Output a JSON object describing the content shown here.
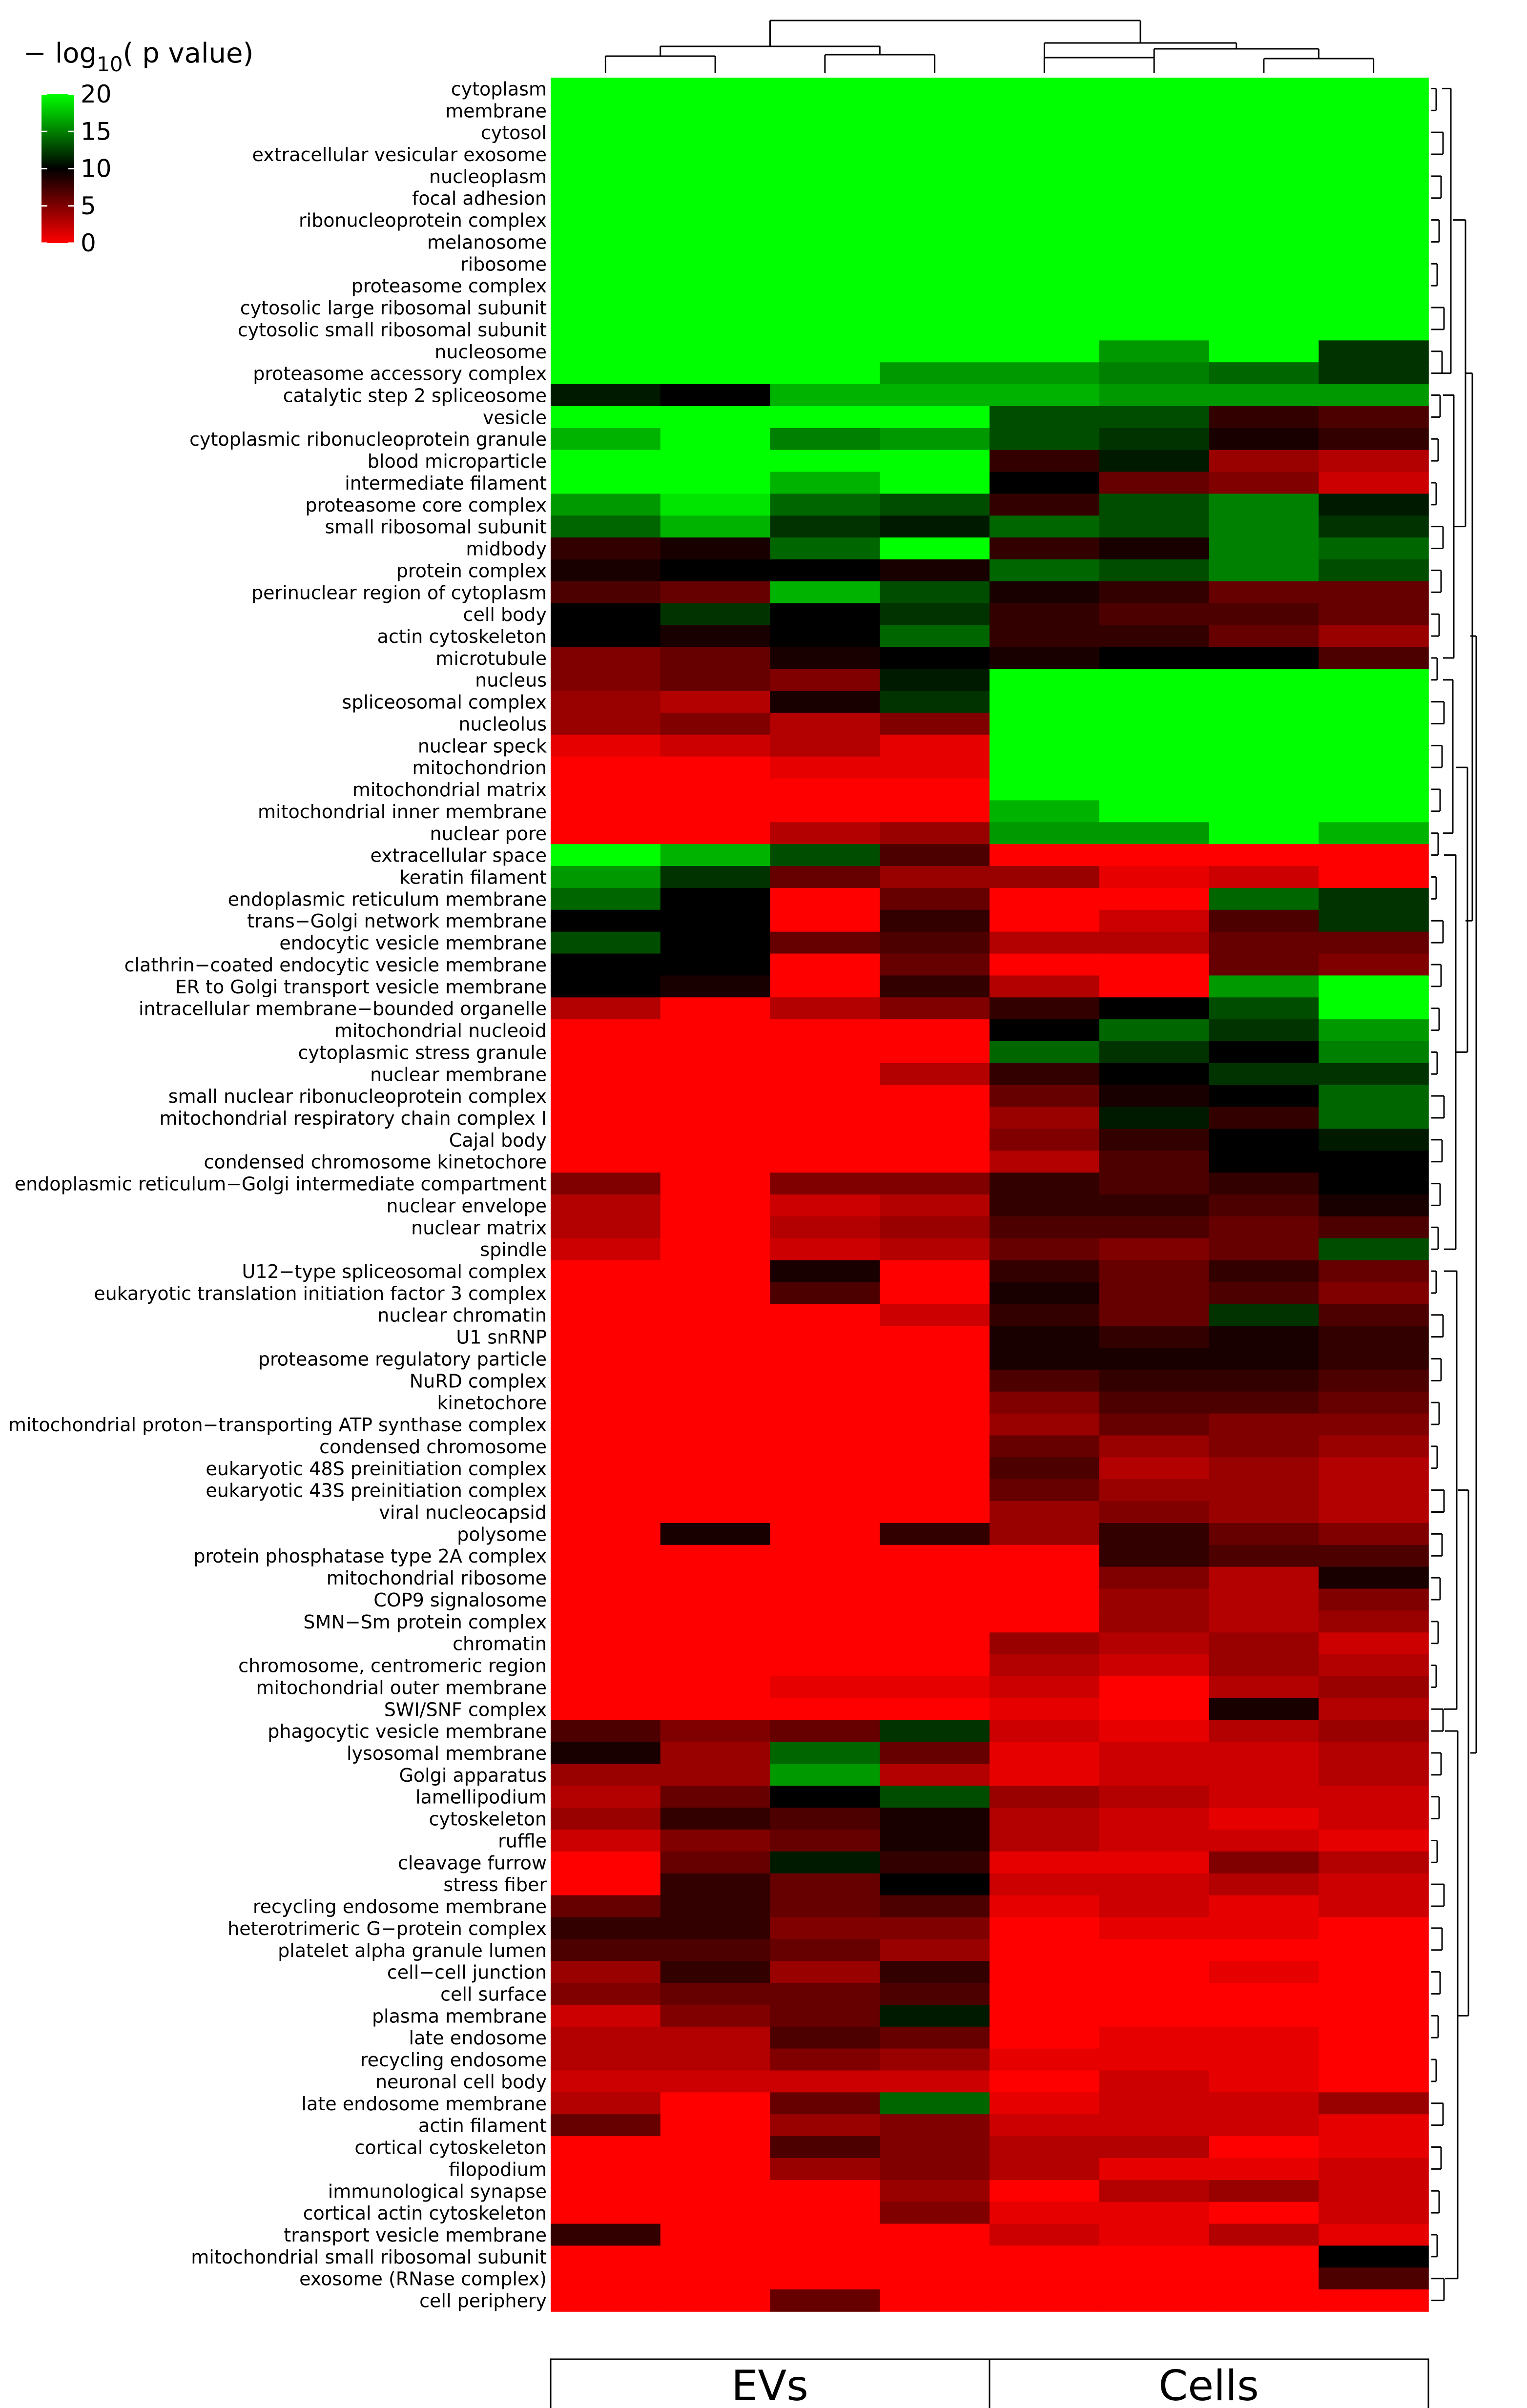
{
  "chart_data": {
    "type": "heatmap",
    "legend": {
      "title_prefix": "− log",
      "title_sub": "10",
      "title_suffix": "( p value)",
      "ticks": [
        "20",
        "15",
        "10",
        "5",
        "0"
      ],
      "range": [
        0,
        20
      ],
      "position": "top-left"
    },
    "colors": {
      "low": "#ff0000",
      "mid": "#000000",
      "high": "#00ff00"
    },
    "groups": [
      {
        "label": "EVs",
        "columns": 4
      },
      {
        "label": "Cells",
        "columns": 4
      }
    ],
    "columns": 8,
    "rows": [
      "cytoplasm",
      "membrane",
      "cytosol",
      "extracellular vesicular exosome",
      "nucleoplasm",
      "focal adhesion",
      "ribonucleoprotein complex",
      "melanosome",
      "ribosome",
      "proteasome complex",
      "cytosolic large ribosomal subunit",
      "cytosolic small ribosomal subunit",
      "nucleosome",
      "proteasome accessory complex",
      "catalytic step 2 spliceosome",
      "vesicle",
      "cytoplasmic ribonucleoprotein granule",
      "blood microparticle",
      "intermediate filament",
      "proteasome core complex",
      "small ribosomal subunit",
      "midbody",
      "protein complex",
      "perinuclear region of cytoplasm",
      "cell body",
      "actin cytoskeleton",
      "microtubule",
      "nucleus",
      "spliceosomal complex",
      "nucleolus",
      "nuclear speck",
      "mitochondrion",
      "mitochondrial matrix",
      "mitochondrial inner membrane",
      "nuclear pore",
      "extracellular space",
      "keratin filament",
      "endoplasmic reticulum membrane",
      "trans−Golgi network membrane",
      "endocytic vesicle membrane",
      "clathrin−coated endocytic vesicle membrane",
      "ER to Golgi transport vesicle membrane",
      "intracellular membrane−bounded organelle",
      "mitochondrial nucleoid",
      "cytoplasmic stress granule",
      "nuclear membrane",
      "small nuclear ribonucleoprotein complex",
      "mitochondrial respiratory chain complex I",
      "Cajal body",
      "condensed chromosome kinetochore",
      "endoplasmic reticulum−Golgi intermediate compartment",
      "nuclear envelope",
      "nuclear matrix",
      "spindle",
      "U12−type spliceosomal complex",
      "eukaryotic translation initiation factor 3 complex",
      "nuclear chromatin",
      "U1 snRNP",
      "proteasome regulatory particle",
      "NuRD complex",
      "kinetochore",
      "mitochondrial proton−transporting ATP synthase complex",
      "condensed chromosome",
      "eukaryotic 48S preinitiation complex",
      "eukaryotic 43S preinitiation complex",
      "viral nucleocapsid",
      "polysome",
      "protein phosphatase type 2A complex",
      "mitochondrial ribosome",
      "COP9 signalosome",
      "SMN−Sm protein complex",
      "chromatin",
      "chromosome, centromeric region",
      "mitochondrial outer membrane",
      "SWI/SNF complex",
      "phagocytic vesicle membrane",
      "lysosomal membrane",
      "Golgi apparatus",
      "lamellipodium",
      "cytoskeleton",
      "ruffle",
      "cleavage furrow",
      "stress fiber",
      "recycling endosome membrane",
      "heterotrimeric G−protein complex",
      "platelet alpha granule lumen",
      "cell−cell junction",
      "cell surface",
      "plasma membrane",
      "late endosome",
      "recycling endosome",
      "neuronal cell body",
      "late endosome membrane",
      "actin filament",
      "cortical cytoskeleton",
      "filopodium",
      "immunological synapse",
      "cortical actin cytoskeleton",
      "transport vesicle membrane",
      "mitochondrial small ribosomal subunit",
      "exosome (RNase complex)",
      "cell periphery"
    ],
    "values": [
      [
        20,
        20,
        20,
        20,
        20,
        20,
        20,
        20
      ],
      [
        20,
        20,
        20,
        20,
        20,
        20,
        20,
        20
      ],
      [
        20,
        20,
        20,
        20,
        20,
        20,
        20,
        20
      ],
      [
        20,
        20,
        20,
        20,
        20,
        20,
        20,
        20
      ],
      [
        20,
        20,
        20,
        20,
        20,
        20,
        20,
        20
      ],
      [
        20,
        20,
        20,
        20,
        20,
        20,
        20,
        20
      ],
      [
        20,
        20,
        20,
        20,
        20,
        20,
        20,
        20
      ],
      [
        20,
        20,
        20,
        20,
        20,
        20,
        20,
        20
      ],
      [
        20,
        20,
        20,
        20,
        20,
        20,
        20,
        20
      ],
      [
        20,
        20,
        20,
        20,
        20,
        20,
        20,
        20
      ],
      [
        20,
        20,
        20,
        20,
        20,
        20,
        20,
        20
      ],
      [
        20,
        20,
        20,
        20,
        20,
        20,
        20,
        20
      ],
      [
        20,
        20,
        20,
        20,
        20,
        16,
        20,
        12
      ],
      [
        20,
        20,
        20,
        16,
        16,
        15,
        14,
        12
      ],
      [
        11,
        10,
        17,
        17,
        17,
        16,
        16,
        16
      ],
      [
        20,
        20,
        20,
        20,
        13,
        13,
        8,
        7
      ],
      [
        17,
        20,
        15,
        16,
        13,
        12,
        9,
        8
      ],
      [
        20,
        20,
        20,
        20,
        8,
        11,
        4,
        3
      ],
      [
        20,
        20,
        17,
        20,
        10,
        6,
        5,
        2
      ],
      [
        16,
        19,
        14,
        13,
        8,
        13,
        15,
        11
      ],
      [
        14,
        17,
        12,
        11,
        14,
        13,
        15,
        12
      ],
      [
        8,
        9,
        14,
        20,
        8,
        9,
        15,
        14
      ],
      [
        9,
        10,
        10,
        9,
        14,
        13,
        15,
        13
      ],
      [
        7,
        6,
        17,
        13,
        9,
        8,
        6,
        6
      ],
      [
        10,
        12,
        10,
        12,
        8,
        7,
        7,
        6
      ],
      [
        10,
        9,
        10,
        14,
        8,
        8,
        6,
        4
      ],
      [
        5,
        6,
        9,
        10,
        9,
        10,
        10,
        7
      ],
      [
        5,
        6,
        5,
        11,
        20,
        20,
        20,
        20
      ],
      [
        4,
        3,
        9,
        12,
        20,
        20,
        20,
        20
      ],
      [
        4,
        5,
        3,
        5,
        20,
        20,
        20,
        20
      ],
      [
        1,
        2,
        3,
        1,
        20,
        20,
        20,
        20
      ],
      [
        0,
        0,
        1,
        1,
        20,
        20,
        20,
        20
      ],
      [
        0,
        0,
        0,
        0,
        20,
        20,
        20,
        20
      ],
      [
        0,
        0,
        0,
        0,
        17,
        20,
        20,
        20
      ],
      [
        0,
        0,
        3,
        4,
        16,
        16,
        20,
        17
      ],
      [
        20,
        17,
        13,
        7,
        0,
        0,
        0,
        0
      ],
      [
        16,
        12,
        6,
        4,
        4,
        1,
        2,
        0
      ],
      [
        14,
        10,
        0,
        6,
        0,
        0,
        14,
        12
      ],
      [
        10,
        10,
        0,
        8,
        0,
        2,
        7,
        12
      ],
      [
        13,
        10,
        6,
        7,
        3,
        3,
        6,
        6
      ],
      [
        10,
        10,
        0,
        6,
        0,
        0,
        6,
        5
      ],
      [
        10,
        9,
        0,
        8,
        3,
        0,
        16,
        20
      ],
      [
        3,
        0,
        3,
        5,
        8,
        10,
        13,
        20
      ],
      [
        0,
        0,
        0,
        0,
        10,
        14,
        12,
        16
      ],
      [
        0,
        0,
        0,
        0,
        14,
        12,
        10,
        15
      ],
      [
        0,
        0,
        0,
        3,
        8,
        10,
        12,
        12
      ],
      [
        0,
        0,
        0,
        0,
        6,
        9,
        10,
        14
      ],
      [
        0,
        0,
        0,
        0,
        4,
        11,
        8,
        14
      ],
      [
        0,
        0,
        0,
        0,
        5,
        8,
        10,
        11
      ],
      [
        0,
        0,
        0,
        0,
        3,
        7,
        10,
        10
      ],
      [
        5,
        0,
        5,
        5,
        8,
        7,
        8,
        10
      ],
      [
        3,
        0,
        2,
        3,
        8,
        8,
        7,
        9
      ],
      [
        3,
        0,
        3,
        4,
        7,
        7,
        6,
        7
      ],
      [
        2,
        0,
        2,
        3,
        6,
        5,
        6,
        13
      ],
      [
        0,
        0,
        9,
        0,
        8,
        6,
        8,
        6
      ],
      [
        0,
        0,
        7,
        0,
        9,
        6,
        7,
        5
      ],
      [
        0,
        0,
        0,
        2,
        8,
        6,
        12,
        7
      ],
      [
        0,
        0,
        0,
        0,
        9,
        8,
        9,
        8
      ],
      [
        0,
        0,
        0,
        0,
        9,
        9,
        9,
        8
      ],
      [
        0,
        0,
        0,
        0,
        7,
        8,
        8,
        7
      ],
      [
        0,
        0,
        0,
        0,
        5,
        7,
        7,
        6
      ],
      [
        0,
        0,
        0,
        0,
        4,
        6,
        5,
        5
      ],
      [
        0,
        0,
        0,
        0,
        6,
        4,
        5,
        4
      ],
      [
        0,
        0,
        0,
        0,
        7,
        3,
        4,
        3
      ],
      [
        0,
        0,
        0,
        0,
        6,
        4,
        4,
        3
      ],
      [
        0,
        0,
        0,
        0,
        4,
        5,
        4,
        3
      ],
      [
        0,
        9,
        0,
        8,
        4,
        8,
        6,
        5
      ],
      [
        0,
        0,
        0,
        0,
        0,
        8,
        7,
        7
      ],
      [
        0,
        0,
        0,
        0,
        0,
        5,
        3,
        9
      ],
      [
        0,
        0,
        0,
        0,
        0,
        4,
        3,
        5
      ],
      [
        0,
        0,
        0,
        0,
        0,
        4,
        3,
        4
      ],
      [
        0,
        0,
        0,
        0,
        4,
        3,
        4,
        2
      ],
      [
        0,
        0,
        0,
        0,
        3,
        2,
        4,
        3
      ],
      [
        0,
        0,
        1,
        1,
        2,
        0,
        3,
        4
      ],
      [
        0,
        0,
        0,
        0,
        1,
        0,
        9,
        3
      ],
      [
        7,
        5,
        6,
        12,
        2,
        1,
        3,
        4
      ],
      [
        9,
        4,
        14,
        6,
        1,
        2,
        2,
        3
      ],
      [
        4,
        4,
        16,
        3,
        1,
        2,
        2,
        3
      ],
      [
        3,
        6,
        10,
        13,
        4,
        3,
        2,
        2
      ],
      [
        4,
        8,
        7,
        9,
        3,
        2,
        1,
        2
      ],
      [
        2,
        5,
        6,
        9,
        3,
        2,
        2,
        1
      ],
      [
        0,
        6,
        11,
        8,
        1,
        1,
        5,
        3
      ],
      [
        0,
        8,
        6,
        10,
        2,
        2,
        3,
        2
      ],
      [
        6,
        8,
        6,
        7,
        1,
        2,
        1,
        2
      ],
      [
        8,
        8,
        5,
        5,
        0,
        1,
        1,
        0
      ],
      [
        7,
        7,
        6,
        4,
        0,
        0,
        0,
        0
      ],
      [
        4,
        8,
        4,
        8,
        0,
        0,
        1,
        0
      ],
      [
        5,
        6,
        6,
        7,
        0,
        0,
        0,
        0
      ],
      [
        2,
        5,
        6,
        11,
        0,
        0,
        0,
        0
      ],
      [
        3,
        3,
        7,
        6,
        0,
        1,
        1,
        0
      ],
      [
        3,
        3,
        5,
        4,
        1,
        1,
        1,
        0
      ],
      [
        2,
        2,
        2,
        2,
        0,
        2,
        1,
        0
      ],
      [
        3,
        0,
        6,
        14,
        1,
        2,
        2,
        4
      ],
      [
        6,
        0,
        4,
        5,
        2,
        2,
        2,
        1
      ],
      [
        0,
        0,
        7,
        5,
        3,
        3,
        0,
        1
      ],
      [
        0,
        0,
        4,
        5,
        3,
        1,
        1,
        2
      ],
      [
        0,
        0,
        0,
        4,
        0,
        3,
        4,
        2
      ],
      [
        0,
        0,
        0,
        5,
        1,
        1,
        0,
        2
      ],
      [
        8,
        0,
        0,
        0,
        2,
        1,
        3,
        1
      ],
      [
        0,
        0,
        0,
        0,
        0,
        0,
        0,
        10
      ],
      [
        0,
        0,
        0,
        0,
        0,
        0,
        0,
        7
      ],
      [
        0,
        0,
        6,
        0,
        0,
        0,
        0,
        0
      ]
    ]
  }
}
